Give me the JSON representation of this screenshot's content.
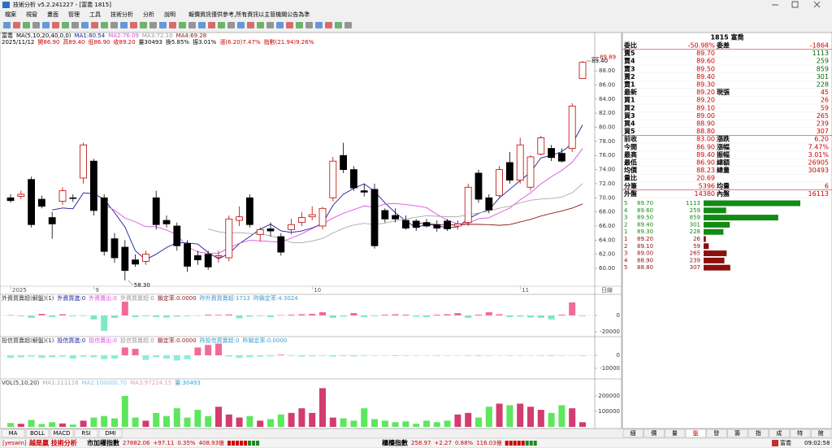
{
  "window": {
    "title": "技術分析 v5.2.241227 - [富喬 1815]",
    "menu": [
      "檔案",
      "視窗",
      "畫面",
      "管理",
      "工具",
      "技術分析",
      "分析",
      "說明"
    ],
    "notice": "報價資訊僅供參考,所有資訊以主管機關公告為準"
  },
  "chart_data": [
    {
      "type": "candlestick",
      "header_items": [
        {
          "text": "富喬",
          "color": "#000"
        },
        {
          "text": "MA(5,10,20,40,0,0)",
          "color": "#000"
        },
        {
          "text": "MA1:80.54",
          "color": "#1a1a9c"
        },
        {
          "text": "MA2:76.09",
          "color": "#e050e0"
        },
        {
          "text": "MA3:72.10",
          "color": "#999999"
        },
        {
          "text": "MA4:69.28",
          "color": "#8b1a1a"
        }
      ],
      "info_items": [
        {
          "text": "2025/11/12",
          "color": "#000"
        },
        {
          "text": "開86.90",
          "color": "#c00"
        },
        {
          "text": "高89.40",
          "color": "#c00"
        },
        {
          "text": "低86.90",
          "color": "#c00"
        },
        {
          "text": "收89.20",
          "color": "#c00"
        },
        {
          "text": "量30493",
          "color": "#000"
        },
        {
          "text": "換5.85%",
          "color": "#000"
        },
        {
          "text": "振3.01%",
          "color": "#000"
        },
        {
          "text": "漲(6.20)7.47%",
          "color": "#c00"
        },
        {
          "text": "指數(21.94)9.26%",
          "color": "#c00"
        }
      ],
      "open": [
        70,
        70.2,
        72.6,
        69.8,
        67.2,
        69.5,
        70,
        72.8,
        75.2,
        70,
        64.2,
        63,
        61.2,
        61,
        70,
        66.8,
        66,
        63.5,
        61.8,
        62,
        61.6,
        61.5,
        66.8,
        70,
        64.8,
        65.6,
        64.5,
        65.5,
        66.5,
        67.3,
        66,
        70,
        76,
        74,
        71,
        71.2,
        68.2,
        67.5,
        66.8,
        66.7,
        66.5,
        66.2,
        66.7,
        66,
        66.5,
        73.5,
        70,
        70.3,
        75,
        72.5,
        71.5,
        76.2,
        77,
        76.3,
        77,
        86.9
      ],
      "high": [
        70.5,
        71,
        73,
        70.3,
        68,
        71.5,
        70.5,
        77.8,
        75.5,
        70.5,
        65,
        64,
        62,
        62.5,
        71,
        67.5,
        66.5,
        64,
        62.5,
        62.5,
        62.5,
        67.5,
        68.8,
        70.5,
        65.8,
        66.5,
        65,
        67,
        68,
        68.8,
        68.7,
        75.8,
        77.8,
        74.5,
        72,
        72,
        68.5,
        68.5,
        67.5,
        67,
        67,
        66.8,
        67,
        66.8,
        72,
        74,
        70.5,
        74.5,
        76.5,
        78.5,
        76,
        78.8,
        77.5,
        77,
        83.4,
        89.4
      ],
      "low": [
        69.3,
        69.8,
        65.8,
        68.5,
        64.2,
        69,
        69.4,
        72,
        67.5,
        61.8,
        60.8,
        58.3,
        60.2,
        60.5,
        65.5,
        65.8,
        62.5,
        59.5,
        60.5,
        59.8,
        60.8,
        61,
        66,
        65.8,
        63.8,
        64.5,
        61.8,
        64.8,
        66,
        66.8,
        65.5,
        69.5,
        73.5,
        71,
        70.2,
        62.8,
        66.5,
        66.5,
        65.5,
        65.3,
        65.8,
        65.2,
        65.3,
        65.5,
        66,
        69.3,
        67.8,
        70,
        72,
        72,
        71,
        76,
        75.2,
        75,
        76.5,
        86.9
      ],
      "close": [
        69.6,
        70.5,
        66.2,
        68.8,
        66.3,
        71,
        69.9,
        77.5,
        68.2,
        62.4,
        61.5,
        59.7,
        60.6,
        62,
        66.2,
        66.3,
        63.2,
        60.3,
        61.2,
        60.2,
        61.8,
        67,
        67.3,
        66.2,
        65.5,
        65.3,
        62.3,
        66.2,
        67.2,
        67.6,
        68.5,
        75.2,
        74,
        71.4,
        70.8,
        63.2,
        67,
        67,
        65.7,
        65.8,
        66,
        65.7,
        65.6,
        66.3,
        71.5,
        69.8,
        68.3,
        74,
        72.5,
        77.5,
        75.8,
        78.5,
        75.7,
        75.2,
        83,
        89.2
      ],
      "ylim": [
        57.7,
        91.7
      ],
      "yticks": [
        {
          "value": 60,
          "label": "60.00"
        },
        {
          "value": 62,
          "label": "62.00"
        },
        {
          "value": 64,
          "label": "64.00"
        },
        {
          "value": 66,
          "label": "66.00"
        },
        {
          "value": 68,
          "label": "68.00"
        },
        {
          "value": 70,
          "label": "70.00"
        },
        {
          "value": 72,
          "label": "72.00"
        },
        {
          "value": 74,
          "label": "74.00"
        },
        {
          "value": 76,
          "label": "76.00"
        },
        {
          "value": 78,
          "label": "78.00"
        },
        {
          "value": 80,
          "label": "80.00"
        },
        {
          "value": 82,
          "label": "82.00"
        },
        {
          "value": 84,
          "label": "84.00"
        },
        {
          "value": 86,
          "label": "86.00"
        },
        {
          "value": 88,
          "label": "88.00"
        }
      ],
      "price_cursor": {
        "value": 89.89,
        "label": "89.89"
      },
      "high_label": "89.40",
      "low_label": "58.30",
      "xticks": [
        {
          "value": 0,
          "label": "2025"
        },
        {
          "value": 8,
          "label": "9"
        },
        {
          "value": 29,
          "label": "10"
        },
        {
          "value": 49,
          "label": "11"
        }
      ],
      "x_unit": "日線",
      "ma_periods": [
        5,
        10,
        20,
        40
      ],
      "ma_colors": [
        "#1a1a9c",
        "#e050e0",
        "#aaaaaa",
        "#8b1a1a"
      ],
      "up_color": "#c00000",
      "down_color": "#000000"
    },
    {
      "type": "bar",
      "title_items": [
        {
          "text": "外資買賣超(解盤)(1)",
          "color": "#333"
        },
        {
          "text": "外資買進:0",
          "color": "#1a1a9c"
        },
        {
          "text": "外資賣出:0",
          "color": "#e050e0"
        },
        {
          "text": "外資買賣超:0",
          "color": "#999"
        },
        {
          "text": "鎖定率:0.0000",
          "color": "#8b1a1a"
        },
        {
          "text": "昨外資買賣超:1713",
          "color": "#3aa0d0"
        },
        {
          "text": "昨鎖定率:4.3024",
          "color": "#3aa0d0"
        }
      ],
      "values": [
        500,
        -1000,
        -3000,
        2000,
        -2000,
        1500,
        -1000,
        -800,
        -5000,
        -19000,
        -3000,
        17000,
        -2000,
        -1000,
        -2000,
        -2500,
        -1500,
        -1000,
        -500,
        1000,
        800,
        1200,
        -3500,
        -1500,
        -800,
        -2000,
        500,
        1000,
        1500,
        2000,
        4000,
        -3000,
        -1500,
        3000,
        -2000,
        -1000,
        1000,
        1500,
        1000,
        -1500,
        -2000,
        1000,
        1500,
        3000,
        -3000,
        1000,
        4000,
        1500,
        -2000,
        -1500,
        -2500,
        -3000,
        -5000,
        1000,
        16000,
        -1000
      ],
      "ylim": [
        -26000,
        26000
      ],
      "yticks": [
        0,
        -20000
      ],
      "pos_color": "#f06c96",
      "neg_color": "#7ee8c8"
    },
    {
      "type": "bar",
      "title_items": [
        {
          "text": "投信買賣超(解盤)(1)",
          "color": "#333"
        },
        {
          "text": "投信買進:0",
          "color": "#1a1a9c"
        },
        {
          "text": "投信賣出:0",
          "color": "#e050e0"
        },
        {
          "text": "投信買賣超:0",
          "color": "#999"
        },
        {
          "text": "鎖定率:0.0000",
          "color": "#8b1a1a"
        },
        {
          "text": "昨投信買賣超:0",
          "color": "#3aa0d0"
        },
        {
          "text": "昨鎖定率:0.0000",
          "color": "#3aa0d0"
        }
      ],
      "values": [
        -2000,
        -1500,
        -1000,
        -2000,
        -1500,
        -1000,
        -2500,
        -1000,
        -1500,
        -3000,
        -2500,
        6000,
        5000,
        -3500,
        -1500,
        -2500,
        -4000,
        -3000,
        6000,
        8000,
        9000,
        -1000,
        -2000,
        -1500,
        -1000,
        -800,
        500,
        -500,
        -1000,
        -800,
        -500,
        -1000,
        -600,
        -800,
        -500,
        -400,
        -300,
        -600,
        -500,
        -400,
        -300,
        -500,
        -400,
        -300,
        -500,
        -600,
        -400,
        -300,
        -500,
        -400,
        -300,
        -500,
        -600,
        -400,
        -300,
        -500
      ],
      "ylim": [
        -18125,
        14375
      ],
      "yticks": [
        0,
        -10000
      ],
      "pos_color": "#f06c96",
      "neg_color": "#88eedd"
    },
    {
      "type": "volume",
      "title_items": [
        {
          "text": "VOL(5,10,20)",
          "color": "#333"
        },
        {
          "text": "MA1:111116",
          "color": "#aaaaaa"
        },
        {
          "text": "MA2:100000.70",
          "color": "#7ec8e8"
        },
        {
          "text": "MA3:97224.15",
          "color": "#e8a0b0"
        },
        {
          "text": "量:30493",
          "color": "#3aa0d0"
        }
      ],
      "values": [
        25000,
        20000,
        45000,
        18000,
        30000,
        22000,
        15000,
        40000,
        60000,
        70000,
        55000,
        200000,
        60000,
        40000,
        90000,
        70000,
        120000,
        60000,
        110000,
        70000,
        130000,
        80000,
        60000,
        70000,
        40000,
        50000,
        80000,
        90000,
        120000,
        90000,
        250000,
        60000,
        55000,
        40000,
        120000,
        50000,
        40000,
        30000,
        35000,
        20000,
        40000,
        30000,
        40000,
        80000,
        90000,
        60000,
        130000,
        150000,
        140000,
        150000,
        130000,
        110000,
        90000,
        140000,
        120000,
        30000
      ],
      "ylim": [
        0,
        310000
      ],
      "yticks": [
        100000,
        200000
      ],
      "up_color": "#d23c6e",
      "down_color": "#5ee65e"
    }
  ],
  "indicator_tabs": [
    "MA",
    "BOLL",
    "MACD",
    "RSI",
    "DMI"
  ],
  "quote": {
    "header": "1815 富喬",
    "rows": [
      [
        "委比",
        "-50.98%",
        "委差",
        "-1864"
      ],
      [
        "賣5",
        "89.70",
        "1113"
      ],
      [
        "賣4",
        "89.60",
        "259"
      ],
      [
        "賣3",
        "89.50",
        "859"
      ],
      [
        "賣2",
        "89.40",
        "301"
      ],
      [
        "賣1",
        "89.30",
        "228"
      ],
      [
        "最新",
        "89.20",
        "現張",
        "45"
      ],
      [
        "買1",
        "89.20",
        "26"
      ],
      [
        "買2",
        "89.10",
        "59"
      ],
      [
        "買3",
        "89.00",
        "265"
      ],
      [
        "買4",
        "88.90",
        "239"
      ],
      [
        "買5",
        "88.80",
        "307"
      ],
      [
        "前收",
        "83.00",
        "漲跌",
        "6.20"
      ],
      [
        "今開",
        "86.90",
        "漲幅",
        "7.47%"
      ],
      [
        "最高",
        "89.40",
        "振幅",
        "3.01%"
      ],
      [
        "最低",
        "86.90",
        "總額",
        "26905"
      ],
      [
        "均價",
        "88.23",
        "總量",
        "30493"
      ],
      [
        "量比",
        "20.69"
      ],
      [
        "分筆",
        "5396",
        "均量",
        "6"
      ],
      [
        "外盤",
        "14380",
        "內盤",
        "16113"
      ]
    ],
    "depth": {
      "sell_color": "#138a13",
      "buy_color": "#8b1010",
      "sell": [
        {
          "level": "5",
          "price": "89.70",
          "qty": 1113
        },
        {
          "level": "4",
          "price": "89.60",
          "qty": 259
        },
        {
          "level": "3",
          "price": "89.50",
          "qty": 859
        },
        {
          "level": "2",
          "price": "89.40",
          "qty": 301
        },
        {
          "level": "1",
          "price": "89.30",
          "qty": 228
        }
      ],
      "buy": [
        {
          "level": "1",
          "price": "89.20",
          "qty": 26
        },
        {
          "level": "2",
          "price": "89.10",
          "qty": 59
        },
        {
          "level": "3",
          "price": "89.00",
          "qty": 265
        },
        {
          "level": "4",
          "price": "88.90",
          "qty": 239
        },
        {
          "level": "5",
          "price": "88.80",
          "qty": 307
        }
      ]
    }
  },
  "side_tabs": [
    "細",
    "價",
    "量",
    "盤",
    "發",
    "籌",
    "指",
    "成",
    "特",
    "館"
  ],
  "status_bar": {
    "brand": "[yeswin]",
    "slogan": "越是贏 技術分析",
    "taiex": {
      "name": "市加權指數",
      "value": "27882.06",
      "change": "+97.11",
      "pct": "0.35%",
      "amount": "408.93億"
    },
    "otc": {
      "name": "櫃檯指數",
      "value": "258.97",
      "change": "+2.27",
      "pct": "0.88%",
      "amount": "116.03億"
    },
    "stock": "富喬",
    "time": "09:02:58"
  }
}
